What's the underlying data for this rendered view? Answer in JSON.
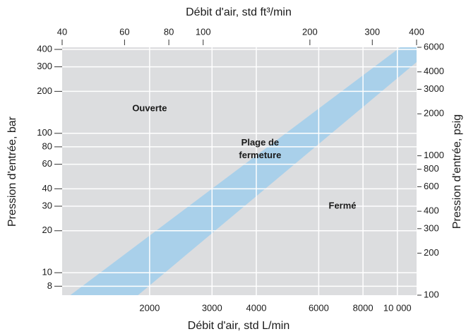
{
  "chart_data": {
    "type": "band",
    "x_title": "Débit d'air, std L/min",
    "x2_title": "Débit d'air, std ft³/min",
    "y_title": "Pression d'entrée, bar",
    "y2_title": "Pression d'entrée, psig",
    "xscale": "log",
    "yscale": "log",
    "xlim": [
      1133,
      11330
    ],
    "xticks": [
      2000,
      3000,
      4000,
      6000,
      8000,
      {
        "value": 10000,
        "label": "10 000"
      }
    ],
    "x2lim": [
      40,
      400
    ],
    "x2ticks": [
      40,
      60,
      80,
      100,
      200,
      300,
      400
    ],
    "ylim": [
      6.9,
      414
    ],
    "yticks": [
      8,
      10,
      20,
      30,
      40,
      60,
      80,
      100,
      200,
      300,
      400
    ],
    "y2lim": [
      100,
      6000
    ],
    "y2ticks": [
      100,
      200,
      300,
      400,
      600,
      800,
      1000,
      2000,
      3000,
      4000,
      6000
    ],
    "grid": true,
    "background": "#dcdddf",
    "color": "#a9d0ea",
    "band": {
      "x": [
        1195,
        10190,
        11330,
        11330,
        1855
      ],
      "y": [
        6.9,
        414,
        414,
        324,
        6.9
      ]
    },
    "annotations": [
      {
        "text": "Ouverte",
        "x": 2000,
        "y": 150
      },
      {
        "text": "Plage de",
        "x": 4100,
        "y": 85
      },
      {
        "text": "fermeture",
        "x": 4100,
        "y": 69
      },
      {
        "text": "Fermé",
        "x": 7000,
        "y": 30
      }
    ]
  }
}
